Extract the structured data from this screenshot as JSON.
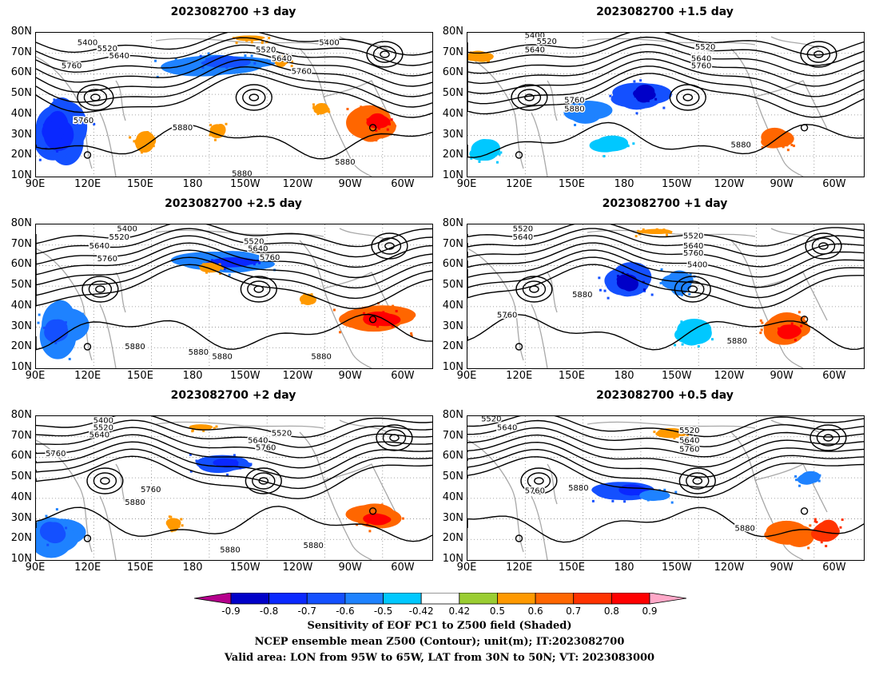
{
  "panels": [
    {
      "title": "2023082700  +3 day",
      "contours": [
        "5400",
        "5520",
        "5640",
        "5760",
        "5880",
        "5400",
        "5520",
        "5640",
        "5760",
        "5760",
        "5880",
        "5880"
      ]
    },
    {
      "title": "2023082700  +1.5 day",
      "contours": [
        "5400",
        "5520",
        "5640",
        "5760",
        "5880",
        "5520",
        "5640",
        "5760",
        "5880"
      ]
    },
    {
      "title": "2023082700  +2.5 day",
      "contours": [
        "5400",
        "5520",
        "5640",
        "5760",
        "5520",
        "5640",
        "5760",
        "5880",
        "5880",
        "5880",
        "5880"
      ]
    },
    {
      "title": "2023082700  +1 day",
      "contours": [
        "5520",
        "5640",
        "5880",
        "5760",
        "5520",
        "5640",
        "5760",
        "5400",
        "5880"
      ]
    },
    {
      "title": "2023082700  +2 day",
      "contours": [
        "5400",
        "5520",
        "5640",
        "5760",
        "5760",
        "5880",
        "5640",
        "5760",
        "5520",
        "5880",
        "5880"
      ]
    },
    {
      "title": "2023082700  +0.5 day",
      "contours": [
        "5520",
        "5640",
        "5760",
        "5880",
        "5520",
        "5640",
        "5760",
        "5880"
      ]
    }
  ],
  "axes": {
    "lat_labels": [
      "80N",
      "70N",
      "60N",
      "50N",
      "40N",
      "30N",
      "20N",
      "10N"
    ],
    "lon_labels": [
      "90E",
      "120E",
      "150E",
      "180",
      "150W",
      "120W",
      "90W",
      "60W"
    ]
  },
  "colorbar": {
    "labels": [
      "-0.9",
      "-0.8",
      "-0.7",
      "-0.6",
      "-0.5",
      "-0.42",
      "0.42",
      "0.5",
      "0.6",
      "0.7",
      "0.8",
      "0.9"
    ],
    "colors": [
      "#b5008c",
      "#0000c8",
      "#0a28ff",
      "#1450ff",
      "#1e82ff",
      "#00c8ff",
      "#ffffff",
      "#9acd32",
      "#ff9900",
      "#ff6600",
      "#ff3300",
      "#ff0000",
      "#ffa8c8"
    ]
  },
  "caption": {
    "line1": "Sensitivity of EOF PC1 to Z500 field (Shaded)",
    "line2": "NCEP ensemble mean Z500 (Contour); unit(m); IT:2023082700",
    "line3": "Valid area: LON from 95W to 65W, LAT from 30N to 50N; VT: 2023083000"
  }
}
